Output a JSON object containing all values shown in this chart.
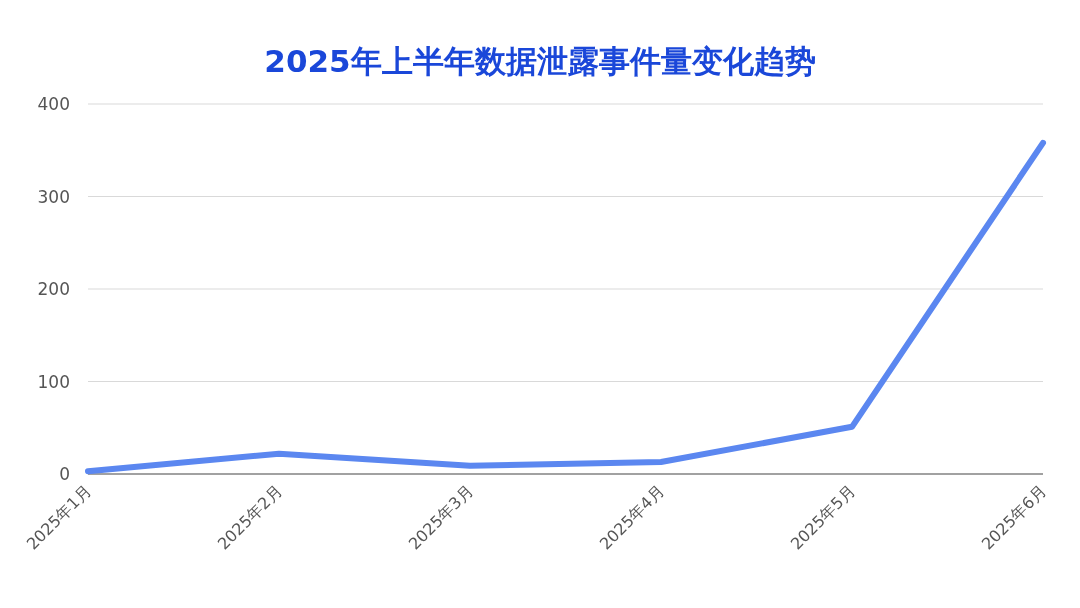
{
  "chart_data": {
    "type": "line",
    "title": "2025年上半年数据泄露事件量变化趋势",
    "categories": [
      "2025年1月",
      "2025年2月",
      "2025年3月",
      "2025年4月",
      "2025年5月",
      "2025年6月"
    ],
    "values": [
      3,
      22,
      9,
      13,
      51,
      358
    ],
    "color": "#5b87f0",
    "ylim": [
      0,
      400
    ],
    "yticks": [
      0,
      100,
      200,
      300,
      400
    ],
    "grid": "y",
    "marker": "none",
    "legend": false
  }
}
